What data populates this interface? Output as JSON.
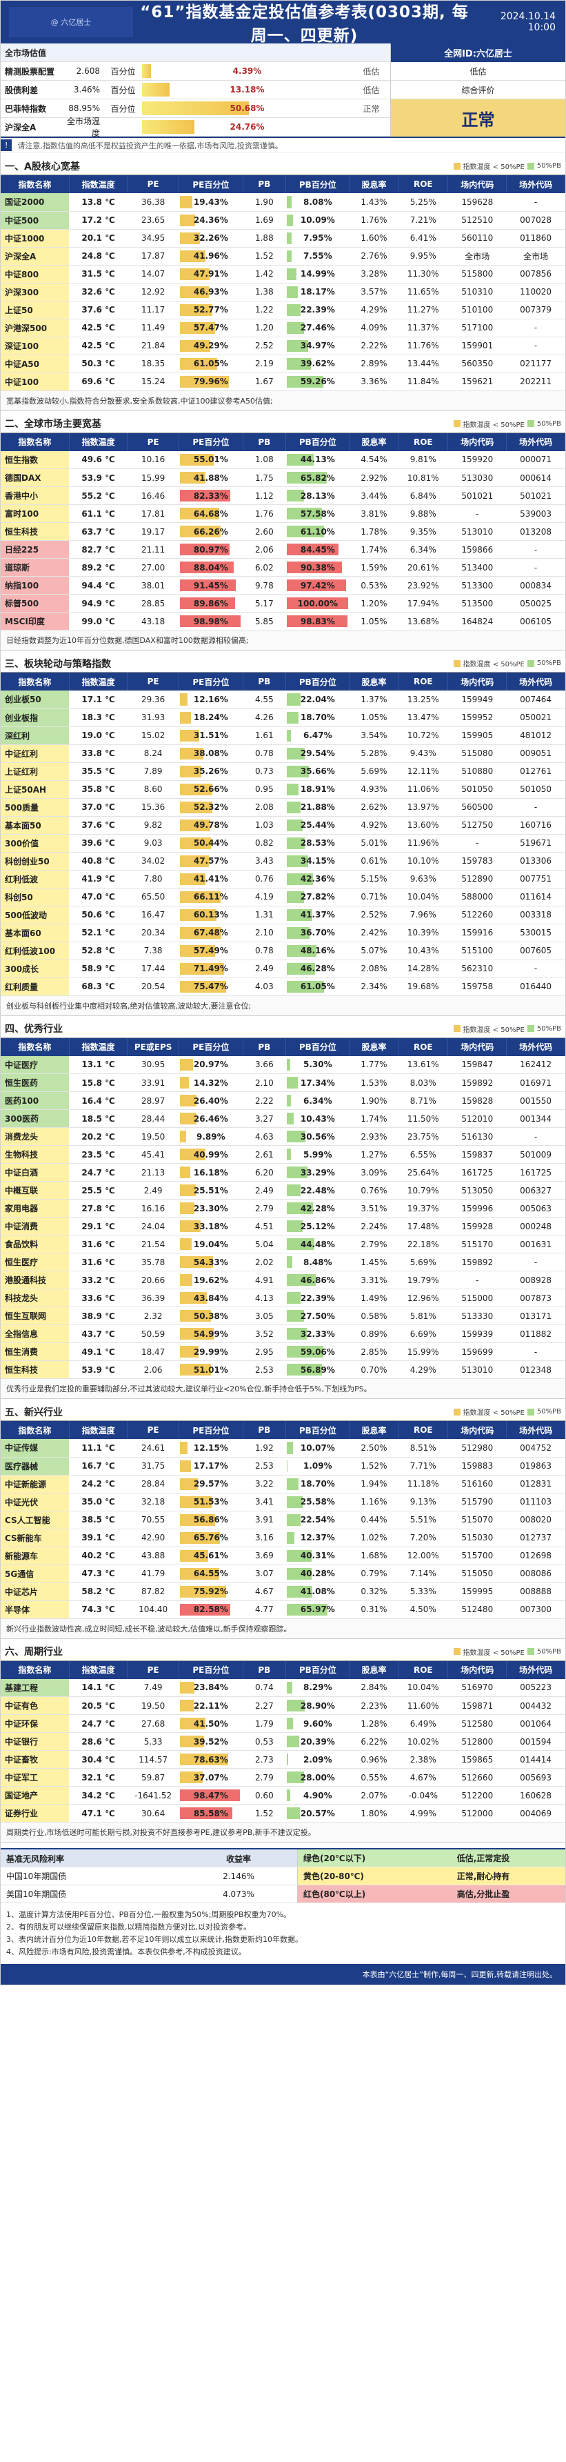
{
  "header": {
    "title": "“61”指数基金定投估值参考表(0303期, 每周一、四更新)",
    "date": "2024.10.14 10:00",
    "watermark": "@ 六亿居士"
  },
  "summary": {
    "rows": [
      {
        "name": "全市场估值",
        "value": "",
        "unit": "",
        "pct": "",
        "pct_label": "",
        "tag": "",
        "head": true
      },
      {
        "name": "精测股票配置",
        "value": "2.608",
        "unit": "百分位",
        "pct": 0.0439,
        "pct_label": "4.39%",
        "tag": "低估"
      },
      {
        "name": "股债利差",
        "value": "3.46%",
        "unit": "百分位",
        "pct": 0.1318,
        "pct_label": "13.18%",
        "tag": "低估"
      },
      {
        "name": "巴菲特指数",
        "value": "88.95%",
        "unit": "百分位",
        "pct": 0.5068,
        "pct_label": "50.68%",
        "tag": "正常"
      },
      {
        "name": "沪深全A",
        "value": "全市场温度",
        "unit": "",
        "pct": 0.2476,
        "pct_label": "24.76%",
        "tag": ""
      }
    ],
    "right_head": "全网ID:六亿居士",
    "right_rows": [
      "低估",
      "综合评价"
    ],
    "verdict": "正常"
  },
  "intro": "请注意,指数估值的高低不是权益投资产生的唯一依据,市场有风险,投资需谨慎。",
  "legend": {
    "a": "指数温度 < 50%PE",
    "b": "50%PB"
  },
  "columns": [
    "指数名称",
    "指数温度",
    "PE",
    "PE百分位",
    "PB",
    "PB百分位",
    "股息率",
    "ROE",
    "场内代码",
    "场外代码"
  ],
  "sections": [
    {
      "title": "一、A股核心宽基",
      "rows": [
        [
          "国证2000",
          "13.8 ℃",
          "36.38",
          "19.43%",
          "1.90",
          "8.08%",
          "1.43%",
          "5.25%",
          "159628",
          "-"
        ],
        [
          "中证500",
          "17.2 ℃",
          "23.65",
          "24.36%",
          "1.69",
          "10.09%",
          "1.76%",
          "7.21%",
          "512510",
          "007028"
        ],
        [
          "中证1000",
          "20.1 ℃",
          "34.95",
          "32.26%",
          "1.88",
          "7.95%",
          "1.60%",
          "6.41%",
          "560110",
          "011860"
        ],
        [
          "沪深全A",
          "24.8 ℃",
          "17.87",
          "41.96%",
          "1.52",
          "7.55%",
          "2.76%",
          "9.95%",
          "全市场",
          "全市场"
        ],
        [
          "中证800",
          "31.5 ℃",
          "14.07",
          "47.91%",
          "1.42",
          "14.99%",
          "3.28%",
          "11.30%",
          "515800",
          "007856"
        ],
        [
          "沪深300",
          "32.6 ℃",
          "12.92",
          "46.93%",
          "1.38",
          "18.17%",
          "3.57%",
          "11.65%",
          "510310",
          "110020"
        ],
        [
          "上证50",
          "37.6 ℃",
          "11.17",
          "52.77%",
          "1.22",
          "22.39%",
          "4.29%",
          "11.27%",
          "510100",
          "007379"
        ],
        [
          "沪港深500",
          "42.5 ℃",
          "11.49",
          "57.47%",
          "1.20",
          "27.46%",
          "4.09%",
          "11.37%",
          "517100",
          "-"
        ],
        [
          "深证100",
          "42.5 ℃",
          "21.84",
          "49.29%",
          "2.52",
          "34.97%",
          "2.22%",
          "11.76%",
          "159901",
          "-"
        ],
        [
          "中证A50",
          "50.3 ℃",
          "18.35",
          "61.05%",
          "2.19",
          "39.62%",
          "2.89%",
          "13.44%",
          "560350",
          "021177"
        ],
        [
          "中证100",
          "69.6 ℃",
          "15.24",
          "79.96%",
          "1.67",
          "59.26%",
          "3.36%",
          "11.84%",
          "159621",
          "202211"
        ]
      ],
      "remark": "宽基指数波动较小,指数符合分散要求,安全系数较高,中证100建议参考A50估值;"
    },
    {
      "title": "二、全球市场主要宽基",
      "rows": [
        [
          "恒生指数",
          "49.6 ℃",
          "10.16",
          "55.01%",
          "1.08",
          "44.13%",
          "4.54%",
          "9.81%",
          "159920",
          "000071"
        ],
        [
          "德国DAX",
          "53.9 ℃",
          "15.99",
          "41.88%",
          "1.75",
          "65.82%",
          "2.92%",
          "10.81%",
          "513030",
          "000614"
        ],
        [
          "香港中小",
          "55.2 ℃",
          "16.46",
          "82.33%",
          "1.12",
          "28.13%",
          "3.44%",
          "6.84%",
          "501021",
          "501021"
        ],
        [
          "富时100",
          "61.1 ℃",
          "17.81",
          "64.68%",
          "1.76",
          "57.58%",
          "3.81%",
          "9.88%",
          "-",
          "539003"
        ],
        [
          "恒生科技",
          "63.7 ℃",
          "19.17",
          "66.26%",
          "2.60",
          "61.10%",
          "1.78%",
          "9.35%",
          "513010",
          "013208"
        ],
        [
          "日经225",
          "82.7 ℃",
          "21.11",
          "80.97%",
          "2.06",
          "84.45%",
          "1.74%",
          "6.34%",
          "159866",
          "-"
        ],
        [
          "道琼斯",
          "89.2 ℃",
          "27.00",
          "88.04%",
          "6.02",
          "90.38%",
          "1.59%",
          "20.61%",
          "513400",
          "-"
        ],
        [
          "纳指100",
          "94.4 ℃",
          "38.01",
          "91.45%",
          "9.78",
          "97.42%",
          "0.53%",
          "23.92%",
          "513300",
          "000834"
        ],
        [
          "标普500",
          "94.9 ℃",
          "28.85",
          "89.86%",
          "5.17",
          "100.00%",
          "1.20%",
          "17.94%",
          "513500",
          "050025"
        ],
        [
          "MSCI印度",
          "99.0 ℃",
          "43.18",
          "98.98%",
          "5.85",
          "98.83%",
          "1.05%",
          "13.68%",
          "164824",
          "006105"
        ]
      ],
      "remark": "日经指数调整为近10年百分位数据,德国DAX和富时100数据源相较偏高;"
    },
    {
      "title": "三、板块轮动与策略指数",
      "rows": [
        [
          "创业板50",
          "17.1 ℃",
          "29.36",
          "12.16%",
          "4.55",
          "22.04%",
          "1.37%",
          "13.25%",
          "159949",
          "007464"
        ],
        [
          "创业板指",
          "18.3 ℃",
          "31.93",
          "18.24%",
          "4.26",
          "18.70%",
          "1.05%",
          "13.47%",
          "159952",
          "050021"
        ],
        [
          "深红利",
          "19.0 ℃",
          "15.02",
          "31.51%",
          "1.61",
          "6.47%",
          "3.54%",
          "10.72%",
          "159905",
          "481012"
        ],
        [
          "中证红利",
          "33.8 ℃",
          "8.24",
          "38.08%",
          "0.78",
          "29.54%",
          "5.28%",
          "9.43%",
          "515080",
          "009051"
        ],
        [
          "上证红利",
          "35.5 ℃",
          "7.89",
          "35.26%",
          "0.73",
          "35.66%",
          "5.69%",
          "12.11%",
          "510880",
          "012761"
        ],
        [
          "上证50AH",
          "35.8 ℃",
          "8.60",
          "52.66%",
          "0.95",
          "18.91%",
          "4.93%",
          "11.06%",
          "501050",
          "501050"
        ],
        [
          "500质量",
          "37.0 ℃",
          "15.36",
          "52.32%",
          "2.08",
          "21.88%",
          "2.62%",
          "13.97%",
          "560500",
          "-"
        ],
        [
          "基本面50",
          "37.6 ℃",
          "9.82",
          "49.78%",
          "1.03",
          "25.44%",
          "4.92%",
          "13.60%",
          "512750",
          "160716"
        ],
        [
          "300价值",
          "39.6 ℃",
          "9.03",
          "50.44%",
          "0.82",
          "28.53%",
          "5.01%",
          "11.96%",
          "-",
          "519671"
        ],
        [
          "科创创业50",
          "40.8 ℃",
          "34.02",
          "47.57%",
          "3.43",
          "34.15%",
          "0.61%",
          "10.10%",
          "159783",
          "013306"
        ],
        [
          "红利低波",
          "41.9 ℃",
          "7.80",
          "41.41%",
          "0.76",
          "42.36%",
          "5.15%",
          "9.63%",
          "512890",
          "007751"
        ],
        [
          "科创50",
          "47.0 ℃",
          "65.50",
          "66.11%",
          "4.19",
          "27.82%",
          "0.71%",
          "10.04%",
          "588000",
          "011614"
        ],
        [
          "500低波动",
          "50.6 ℃",
          "16.47",
          "60.13%",
          "1.31",
          "41.37%",
          "2.52%",
          "7.96%",
          "512260",
          "003318"
        ],
        [
          "基本面60",
          "52.1 ℃",
          "20.34",
          "67.48%",
          "2.10",
          "36.70%",
          "2.42%",
          "10.39%",
          "159916",
          "530015"
        ],
        [
          "红利低波100",
          "52.8 ℃",
          "7.38",
          "57.49%",
          "0.78",
          "48.16%",
          "5.07%",
          "10.43%",
          "515100",
          "007605"
        ],
        [
          "300成长",
          "58.9 ℃",
          "17.44",
          "71.49%",
          "2.49",
          "46.28%",
          "2.08%",
          "14.28%",
          "562310",
          "-"
        ],
        [
          "红利质量",
          "68.3 ℃",
          "20.54",
          "75.47%",
          "4.03",
          "61.05%",
          "2.34%",
          "19.68%",
          "159758",
          "016440"
        ]
      ],
      "remark": "创业板与科创板行业集中度相对较高,绝对估值较高,波动较大,要注意仓位;"
    },
    {
      "title": "四、优秀行业",
      "columns": [
        "指数名称",
        "指数温度",
        "PE或EPS",
        "PE百分位",
        "PB",
        "PB百分位",
        "股息率",
        "ROE",
        "场内代码",
        "场外代码"
      ],
      "rows": [
        [
          "中证医疗",
          "13.1 ℃",
          "30.95",
          "20.97%",
          "3.66",
          "5.30%",
          "1.77%",
          "13.61%",
          "159847",
          "162412"
        ],
        [
          "恒生医药",
          "15.8 ℃",
          "33.91",
          "14.32%",
          "2.10",
          "17.34%",
          "1.53%",
          "8.03%",
          "159892",
          "016971"
        ],
        [
          "医药100",
          "16.4 ℃",
          "28.97",
          "26.40%",
          "2.22",
          "6.34%",
          "1.90%",
          "8.71%",
          "159828",
          "001550"
        ],
        [
          "300医药",
          "18.5 ℃",
          "28.44",
          "26.46%",
          "3.27",
          "10.43%",
          "1.74%",
          "11.50%",
          "512010",
          "001344"
        ],
        [
          "消费龙头",
          "20.2 ℃",
          "19.50",
          "9.89%",
          "4.63",
          "30.56%",
          "2.93%",
          "23.75%",
          "516130",
          "-"
        ],
        [
          "生物科技",
          "23.5 ℃",
          "45.41",
          "40.99%",
          "2.61",
          "5.99%",
          "1.27%",
          "6.55%",
          "159837",
          "501009"
        ],
        [
          "中证白酒",
          "24.7 ℃",
          "21.13",
          "16.18%",
          "6.20",
          "33.29%",
          "3.09%",
          "25.64%",
          "161725",
          "161725"
        ],
        [
          "中概互联",
          "25.5 ℃",
          "2.49",
          "25.51%",
          "2.49",
          "22.48%",
          "0.76%",
          "10.79%",
          "513050",
          "006327"
        ],
        [
          "家用电器",
          "27.8 ℃",
          "16.16",
          "23.30%",
          "2.79",
          "42.28%",
          "3.51%",
          "19.37%",
          "159996",
          "005063"
        ],
        [
          "中证消费",
          "29.1 ℃",
          "24.04",
          "33.18%",
          "4.51",
          "25.12%",
          "2.24%",
          "17.48%",
          "159928",
          "000248"
        ],
        [
          "食品饮料",
          "31.6 ℃",
          "21.54",
          "19.04%",
          "5.04",
          "44.48%",
          "2.79%",
          "22.18%",
          "515170",
          "001631"
        ],
        [
          "恒生医疗",
          "31.6 ℃",
          "35.78",
          "54.33%",
          "2.02",
          "8.48%",
          "1.45%",
          "5.69%",
          "159892",
          "-"
        ],
        [
          "港股通科技",
          "33.2 ℃",
          "20.66",
          "19.62%",
          "4.91",
          "46.86%",
          "3.31%",
          "19.79%",
          "-",
          "008928"
        ],
        [
          "科技龙头",
          "33.6 ℃",
          "36.39",
          "43.84%",
          "4.13",
          "22.39%",
          "1.49%",
          "12.96%",
          "515000",
          "007873"
        ],
        [
          "恒生互联网",
          "38.9 ℃",
          "2.32",
          "50.38%",
          "3.05",
          "27.50%",
          "0.58%",
          "5.81%",
          "513330",
          "013171"
        ],
        [
          "全指信息",
          "43.7 ℃",
          "50.59",
          "54.99%",
          "3.52",
          "32.33%",
          "0.89%",
          "6.69%",
          "159939",
          "011882"
        ],
        [
          "恒生消费",
          "49.1 ℃",
          "18.47",
          "29.99%",
          "2.95",
          "59.06%",
          "2.85%",
          "15.99%",
          "159699",
          "-"
        ],
        [
          "恒生科技",
          "53.9 ℃",
          "2.06",
          "51.01%",
          "2.53",
          "56.89%",
          "0.70%",
          "4.29%",
          "513010",
          "012348"
        ]
      ],
      "remark": "优秀行业是我们定投的重要辅助部分,不过其波动较大,建议单行业<20%仓位,新手持仓低于5%,下划线为PS。"
    },
    {
      "title": "五、新兴行业",
      "rows": [
        [
          "中证传媒",
          "11.1 ℃",
          "24.61",
          "12.15%",
          "1.92",
          "10.07%",
          "2.50%",
          "8.51%",
          "512980",
          "004752"
        ],
        [
          "医疗器械",
          "16.7 ℃",
          "31.75",
          "17.17%",
          "2.53",
          "1.09%",
          "1.52%",
          "7.71%",
          "159883",
          "019863"
        ],
        [
          "中证新能源",
          "24.2 ℃",
          "28.84",
          "29.57%",
          "3.22",
          "18.70%",
          "1.94%",
          "11.18%",
          "516160",
          "012831"
        ],
        [
          "中证光伏",
          "35.0 ℃",
          "32.18",
          "51.53%",
          "3.41",
          "25.58%",
          "1.16%",
          "9.13%",
          "515790",
          "011103"
        ],
        [
          "CS人工智能",
          "38.5 ℃",
          "70.55",
          "56.86%",
          "3.91",
          "22.54%",
          "0.44%",
          "5.51%",
          "515070",
          "008020"
        ],
        [
          "CS新能车",
          "39.1 ℃",
          "42.90",
          "65.76%",
          "3.16",
          "12.37%",
          "1.02%",
          "7.20%",
          "515030",
          "012737"
        ],
        [
          "新能源车",
          "40.2 ℃",
          "43.88",
          "45.61%",
          "3.69",
          "40.31%",
          "1.68%",
          "12.00%",
          "515700",
          "012698"
        ],
        [
          "5G通信",
          "47.3 ℃",
          "41.79",
          "64.55%",
          "3.07",
          "40.28%",
          "0.79%",
          "7.14%",
          "515050",
          "008086"
        ],
        [
          "中证芯片",
          "58.2 ℃",
          "87.82",
          "75.92%",
          "4.67",
          "41.08%",
          "0.32%",
          "5.33%",
          "159995",
          "008888"
        ],
        [
          "半导体",
          "74.3 ℃",
          "104.40",
          "82.58%",
          "4.77",
          "65.97%",
          "0.31%",
          "4.50%",
          "512480",
          "007300"
        ]
      ],
      "remark": "新兴行业指数波动性高,成立时间短,成长不稳,波动较大,估值难以,新手保持观察跟踪。"
    },
    {
      "title": "六、周期行业",
      "rows": [
        [
          "基建工程",
          "14.1 ℃",
          "7.49",
          "23.84%",
          "0.74",
          "8.29%",
          "2.84%",
          "10.04%",
          "516970",
          "005223"
        ],
        [
          "中证有色",
          "20.5 ℃",
          "19.50",
          "22.11%",
          "2.27",
          "28.90%",
          "2.23%",
          "11.60%",
          "159871",
          "004432"
        ],
        [
          "中证环保",
          "24.7 ℃",
          "27.68",
          "41.50%",
          "1.79",
          "9.60%",
          "1.28%",
          "6.49%",
          "512580",
          "001064"
        ],
        [
          "中证银行",
          "28.6 ℃",
          "5.33",
          "39.52%",
          "0.53",
          "20.39%",
          "6.22%",
          "10.02%",
          "512800",
          "001594"
        ],
        [
          "中证畜牧",
          "30.4 ℃",
          "114.57",
          "78.63%",
          "2.73",
          "2.09%",
          "0.96%",
          "2.38%",
          "159865",
          "014414"
        ],
        [
          "中证军工",
          "32.1 ℃",
          "59.87",
          "37.07%",
          "2.79",
          "28.00%",
          "0.55%",
          "4.67%",
          "512660",
          "005693"
        ],
        [
          "国证地产",
          "34.2 ℃",
          "-1641.52",
          "98.47%",
          "0.60",
          "4.90%",
          "2.07%",
          "-0.04%",
          "512200",
          "160628"
        ],
        [
          "证券行业",
          "47.1 ℃",
          "30.64",
          "85.58%",
          "1.52",
          "20.57%",
          "1.80%",
          "4.99%",
          "512000",
          "004069"
        ]
      ],
      "remark": "周期类行业,市场低迷时可能长期亏损,对投资不好直接参考PE,建议参考PB,新手不建议定投。"
    }
  ],
  "bonds": {
    "head": [
      "基准无风险利率",
      "收益率"
    ],
    "rows": [
      [
        "中国10年期国债",
        "2.146%"
      ],
      [
        "美国10年期国债",
        "4.073%"
      ]
    ]
  },
  "temp_legend": [
    {
      "k": "绿色(20℃以下)",
      "v": "低估,正常定投"
    },
    {
      "k": "黄色(20-80℃)",
      "v": "正常,耐心持有"
    },
    {
      "k": "红色(80℃以上)",
      "v": "高估,分批止盈"
    }
  ],
  "footnotes": [
    "1、温度计算方法使用PE百分位、PB百分位,一般权重为50%;周期股PB权重为70%。",
    "2、有的朋友可以继续保留原来指数,以精简指数方便对比,以对投资参考。",
    "3、表内统计百分位为近10年数据,若不足10年则以成立以来统计,指数更新约10年数据。",
    "4、风险提示:市场有风险,投资需谨慎。本表仅供参考,不构成投资建议。"
  ],
  "footer": "本表由“六亿居士”制作,每周一、四更新,转载请注明出处。",
  "accent": "#1d3d86"
}
